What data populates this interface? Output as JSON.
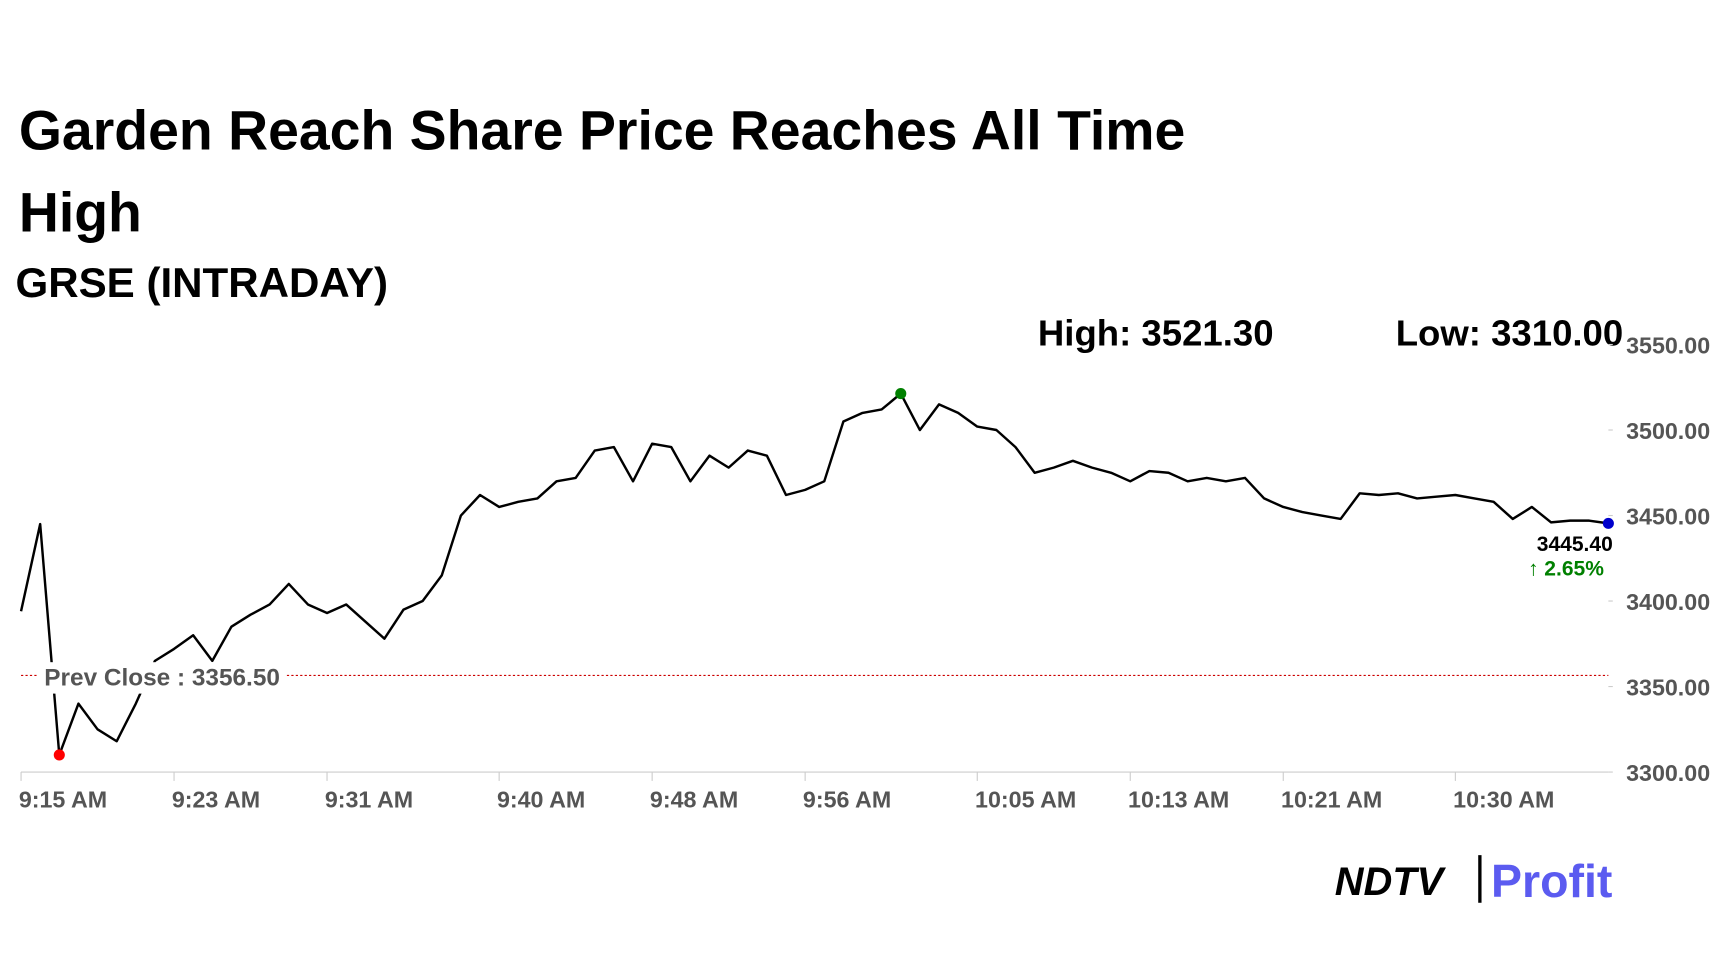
{
  "chart_data": {
    "type": "line",
    "title": "Garden Reach Share Price Reaches All Time High",
    "subtitle": "GRSE (INTRADAY)",
    "high_label": "High: 3521.30",
    "low_label": "Low: 3310.00",
    "prev_close": {
      "value": 3356.5,
      "label": "Prev Close : 3356.50"
    },
    "last_label": "3445.40",
    "change_label": "↑ 2.65%",
    "brand": [
      "NDTV",
      "Profit"
    ],
    "categories": [
      "9:15 AM",
      null,
      null,
      null,
      null,
      null,
      null,
      null,
      "9:23 AM",
      null,
      null,
      null,
      null,
      null,
      null,
      null,
      "9:31 AM",
      null,
      null,
      null,
      null,
      null,
      null,
      null,
      null,
      "9:40 AM",
      null,
      null,
      null,
      null,
      null,
      null,
      null,
      "9:48 AM",
      null,
      null,
      null,
      null,
      null,
      null,
      null,
      "9:56 AM",
      null,
      null,
      null,
      null,
      null,
      null,
      null,
      null,
      "10:05 AM",
      null,
      null,
      null,
      null,
      null,
      null,
      null,
      "10:13 AM",
      null,
      null,
      null,
      null,
      null,
      null,
      null,
      "10:21 AM",
      null,
      null,
      null,
      null,
      null,
      null,
      null,
      null,
      "10:30 AM",
      null,
      null,
      null,
      null,
      null,
      null,
      null,
      null
    ],
    "series": [
      {
        "name": "GRSE",
        "color": "#000000",
        "values": [
          3394,
          3445,
          3310,
          3340,
          3325,
          3318,
          3340,
          3365,
          3372,
          3380,
          3365,
          3385,
          3392,
          3398,
          3410,
          3398,
          3393,
          3398,
          3388,
          3378,
          3395,
          3400,
          3415,
          3450,
          3462,
          3455,
          3458,
          3460,
          3470,
          3472,
          3488,
          3490,
          3470,
          3492,
          3490,
          3470,
          3485,
          3478,
          3488,
          3485,
          3462,
          3465,
          3470,
          3505,
          3510,
          3512,
          3521.3,
          3500,
          3515,
          3510,
          3502,
          3500,
          3490,
          3475,
          3478,
          3482,
          3478,
          3475,
          3470,
          3476,
          3475,
          3470,
          3472,
          3470,
          3472,
          3460,
          3455,
          3452,
          3450,
          3448,
          3463,
          3462,
          3463,
          3460,
          3461,
          3462,
          3460,
          3458,
          3448,
          3455,
          3446,
          3447,
          3447,
          3445.4
        ]
      }
    ],
    "marker_colors": {
      "high": "#008000",
      "low": "#ff0000",
      "last": "#0000cc"
    },
    "prev_close_color": "#cc0000",
    "change_color": "#008000",
    "ylim": [
      3300,
      3550
    ],
    "yticks": [
      {
        "value": 3300,
        "label": "3300.00"
      },
      {
        "value": 3350,
        "label": "3350.00"
      },
      {
        "value": 3400,
        "label": "3400.00"
      },
      {
        "value": 3450,
        "label": "3450.00"
      },
      {
        "value": 3500,
        "label": "3500.00"
      },
      {
        "value": 3550,
        "label": "3550.00"
      }
    ],
    "grid": false
  }
}
